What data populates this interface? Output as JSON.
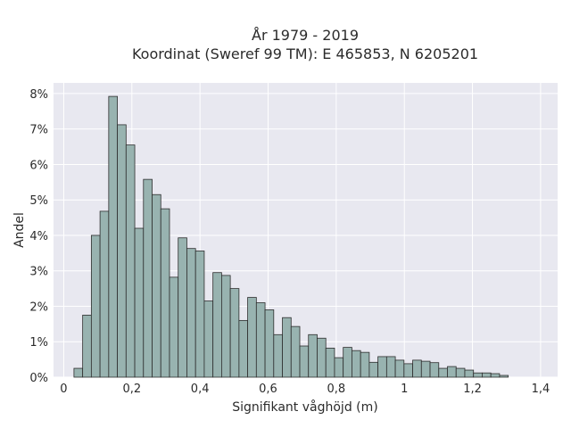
{
  "chart_data": {
    "type": "bar",
    "title_line1": "År 1979 - 2019",
    "title_line2": "Koordinat (Sweref 99 TM): E 465853, N 6205201",
    "xlabel": "Signifikant våghöjd (m)",
    "ylabel": "Andel",
    "xlim": [
      -0.03,
      1.45
    ],
    "ylim": [
      0,
      8.3
    ],
    "x_ticks": [
      0,
      0.2,
      0.4,
      0.6,
      0.8,
      1,
      1.2,
      1.4
    ],
    "x_tick_labels": [
      "0",
      "0,2",
      "0,4",
      "0,6",
      "0,8",
      "1",
      "1,2",
      "1,4"
    ],
    "y_ticks": [
      0,
      1,
      2,
      3,
      4,
      5,
      6,
      7,
      8
    ],
    "y_tick_labels": [
      "0%",
      "1%",
      "2%",
      "3%",
      "4%",
      "5%",
      "6%",
      "7%",
      "8%"
    ],
    "grid": true,
    "bin_start": 0.03,
    "bin_width": 0.0255,
    "values": [
      0.25,
      1.75,
      4.0,
      4.68,
      7.92,
      7.12,
      6.55,
      4.2,
      5.58,
      5.15,
      4.75,
      2.82,
      3.93,
      3.63,
      3.56,
      2.15,
      2.95,
      2.87,
      2.5,
      1.6,
      2.25,
      2.1,
      1.9,
      1.2,
      1.68,
      1.43,
      0.88,
      1.2,
      1.1,
      0.82,
      0.55,
      0.84,
      0.75,
      0.7,
      0.42,
      0.58,
      0.58,
      0.48,
      0.38,
      0.48,
      0.45,
      0.41,
      0.25,
      0.3,
      0.25,
      0.2,
      0.12,
      0.12,
      0.1,
      0.05
    ],
    "colors": {
      "bar_fill": "#98b3b0",
      "bar_stroke": "#2e2e2e",
      "plot_bg": "#e8e8f0",
      "grid": "#ffffff"
    }
  }
}
